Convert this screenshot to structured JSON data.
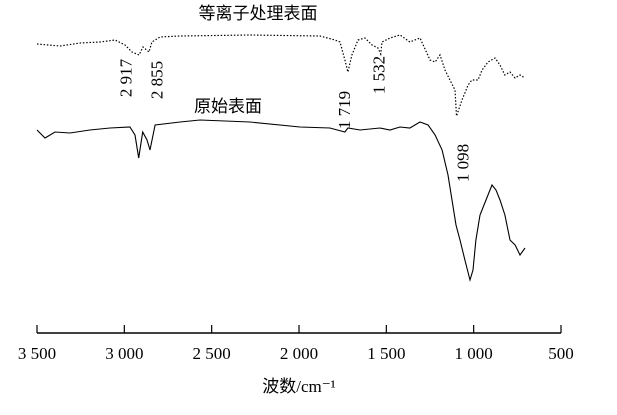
{
  "chart_data": {
    "type": "line",
    "xlabel": "波数/cm⁻¹",
    "xlim": [
      3500,
      500
    ],
    "xticks": [
      {
        "value": 3500,
        "label": "3 500"
      },
      {
        "value": 3000,
        "label": "3 000"
      },
      {
        "value": 2500,
        "label": "2 500"
      },
      {
        "value": 2000,
        "label": "2 000"
      },
      {
        "value": 1500,
        "label": "1 500"
      },
      {
        "value": 1000,
        "label": "1 000"
      },
      500
    ],
    "ylim": [
      0,
      320
    ],
    "annotations": [
      {
        "value": 2917,
        "label": "2 917"
      },
      {
        "value": 2855,
        "label": "2 855"
      },
      {
        "value": 1719,
        "label": "1 719"
      },
      {
        "value": 1532,
        "label": "1 532"
      },
      {
        "value": 1098,
        "label": "1 098"
      }
    ],
    "series": [
      {
        "name": "等离子处理表面",
        "color": "#000000",
        "dash": true,
        "x": [
          3500,
          3368,
          3254,
          3139,
          3053,
          2996,
          2956,
          2916,
          2893,
          2859,
          2842,
          2796,
          2681,
          2281,
          1880,
          1794,
          1765,
          1737,
          1720,
          1697,
          1662,
          1622,
          1582,
          1548,
          1532,
          1525,
          1479,
          1422,
          1365,
          1307,
          1250,
          1221,
          1193,
          1164,
          1136,
          1107,
          1098,
          1067,
          1032,
          1010,
          975,
          952,
          918,
          878,
          849,
          821,
          792,
          763,
          735,
          706
        ],
        "values": [
          286,
          284,
          287,
          288,
          290,
          285,
          278,
          275,
          283,
          278,
          288,
          293,
          294,
          295,
          294,
          290,
          288,
          270,
          258,
          275,
          290,
          292,
          285,
          282,
          276,
          288,
          292,
          295,
          288,
          292,
          270,
          268,
          275,
          260,
          250,
          240,
          214,
          230,
          245,
          250,
          250,
          260,
          268,
          272,
          265,
          255,
          258,
          252,
          255,
          252
        ]
      },
      {
        "name": "原始表面",
        "color": "#000000",
        "dash": false,
        "x": [
          3500,
          3454,
          3397,
          3311,
          3197,
          3082,
          2968,
          2939,
          2918,
          2895,
          2870,
          2853,
          2824,
          2681,
          2567,
          2281,
          1994,
          1823,
          1737,
          1720,
          1651,
          1536,
          1479,
          1422,
          1365,
          1307,
          1261,
          1221,
          1181,
          1147,
          1124,
          1101,
          1078,
          1050,
          1021,
          1004,
          987,
          964,
          941,
          918,
          895,
          872,
          849,
          821,
          792,
          763,
          735,
          706
        ],
        "values": [
          200,
          192,
          198,
          197,
          200,
          202,
          203,
          195,
          172,
          198,
          190,
          180,
          205,
          208,
          210,
          208,
          203,
          202,
          198,
          202,
          200,
          202,
          200,
          203,
          202,
          208,
          205,
          195,
          180,
          155,
          130,
          105,
          90,
          70,
          50,
          60,
          90,
          115,
          125,
          135,
          145,
          140,
          130,
          115,
          90,
          85,
          75,
          82
        ]
      }
    ]
  }
}
